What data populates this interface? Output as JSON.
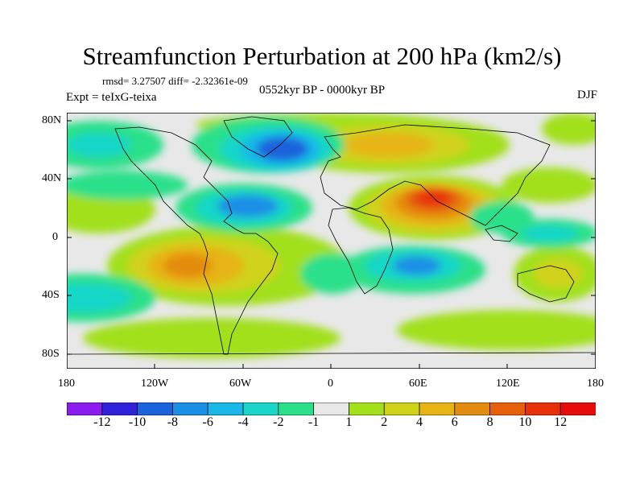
{
  "title": "Streamfunction Perturbation at 200 hPa (km2/s)",
  "stats": "rmsd= 3.27507 diff= -2.32361e-09",
  "experiment": "Expt = teIxG-teixa",
  "period": "0552kyr BP - 0000kyr BP",
  "season": "DJF",
  "lat_labels": [
    "80N",
    "40N",
    "0",
    "40S",
    "80S"
  ],
  "lon_labels": [
    "180",
    "120W",
    "60W",
    "0",
    "60E",
    "120E",
    "180"
  ],
  "colorbar": {
    "labels": [
      "-12",
      "-10",
      "-8",
      "-6",
      "-4",
      "-2",
      "-1",
      "1",
      "2",
      "4",
      "6",
      "8",
      "10",
      "12"
    ],
    "colors": [
      "#8a1cf0",
      "#2f22d8",
      "#1b62dc",
      "#1c8fe6",
      "#19b8e8",
      "#19d6c8",
      "#2be08a",
      "#e8e8e8",
      "#a2e01c",
      "#d0d21a",
      "#e6b414",
      "#e48c10",
      "#e6600c",
      "#e8300c",
      "#e60c0c"
    ]
  }
}
